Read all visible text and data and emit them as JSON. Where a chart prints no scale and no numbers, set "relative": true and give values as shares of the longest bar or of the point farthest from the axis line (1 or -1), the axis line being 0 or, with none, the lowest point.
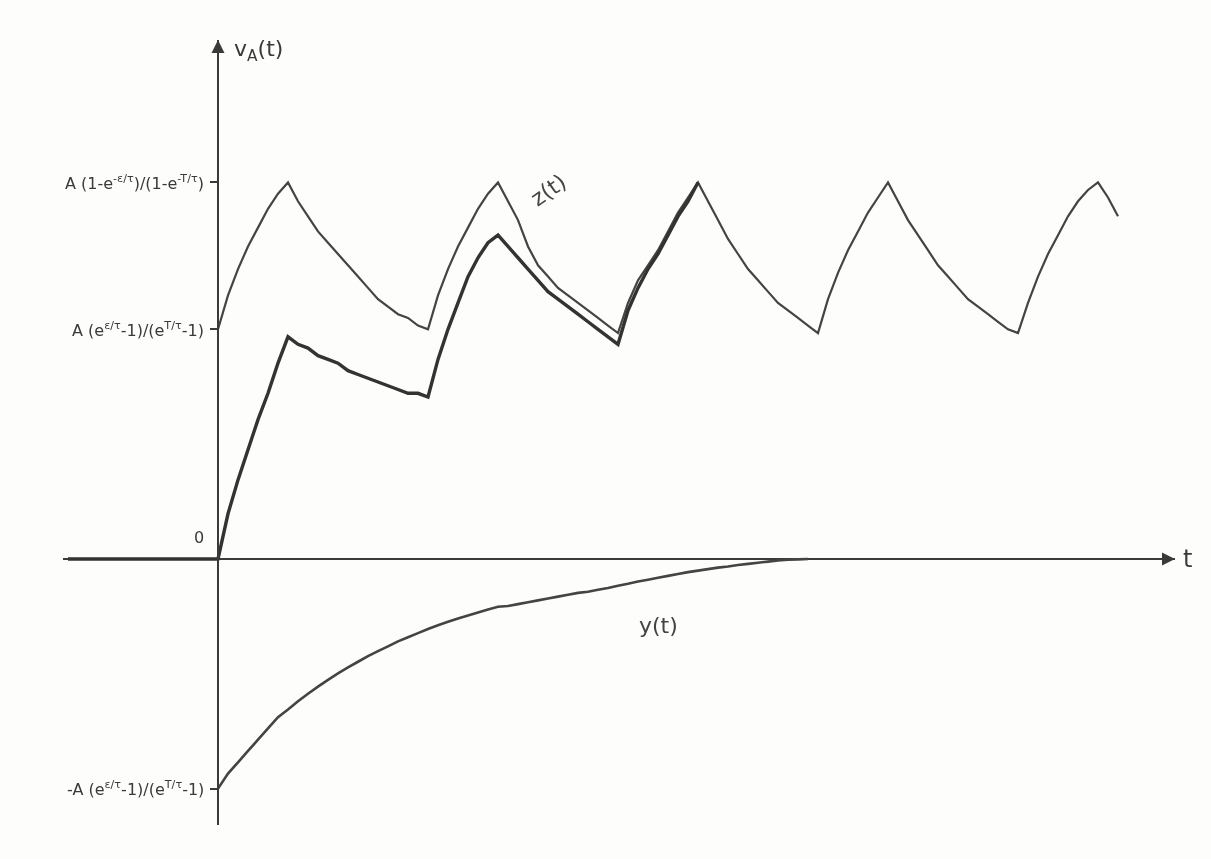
{
  "chart_data": {
    "type": "line",
    "relative": true,
    "xlabel": "t",
    "categories": [
      null,
      null,
      null,
      null,
      null,
      null,
      null,
      null,
      null,
      null,
      null,
      null,
      null,
      null,
      null,
      null,
      null,
      null,
      null,
      null,
      null,
      null,
      null,
      null,
      null,
      null,
      null,
      null,
      null,
      null,
      null,
      null,
      null,
      null,
      null,
      null,
      null,
      null,
      null,
      null,
      null,
      null,
      null,
      null,
      null,
      null,
      null,
      null,
      null,
      null,
      null,
      null,
      null,
      null,
      null,
      null,
      null,
      null,
      null,
      null,
      null,
      null,
      null,
      null,
      null,
      null,
      null,
      null,
      null,
      null,
      null,
      null,
      null,
      null,
      null,
      null,
      null,
      null,
      null,
      null,
      null,
      null,
      null,
      null,
      null,
      null,
      null,
      null,
      null,
      null,
      null,
      null,
      null,
      null,
      null,
      null,
      null,
      null,
      null,
      null,
      null,
      null,
      null,
      null,
      null,
      null
    ],
    "annotations": [
      "A (1-e$^{-ε/τ}$)/(1-e$^{-T/τ}$)",
      "A (e$^{ε/τ}$-1)/(e$^{T/τ}$-1)",
      {
        "text": "0",
        "y": 0
      },
      "-A (e$^{ε/τ}$-1)/(e$^{T/τ}$-1)",
      "v$_{A}$(t)"
    ],
    "series": [
      {
        "name": "z(t)",
        "color": "#444444",
        "values": [
          null,
          null,
          null,
          null,
          null,
          null,
          null,
          null,
          null,
          null,
          null,
          null,
          null,
          null,
          null,
          0.61,
          0.7,
          0.77,
          0.83,
          0.88,
          0.93,
          0.97,
          1.0,
          0.95,
          0.91,
          0.87,
          0.84,
          0.81,
          0.78,
          0.75,
          0.72,
          0.69,
          0.67,
          0.65,
          0.64,
          0.62,
          0.61,
          0.7,
          0.77,
          0.83,
          0.88,
          0.93,
          0.97,
          1.0,
          0.95,
          0.9,
          0.83,
          0.78,
          0.75,
          0.72,
          0.7,
          0.68,
          0.66,
          0.64,
          0.62,
          0.6,
          0.68,
          0.74,
          0.78,
          0.82,
          0.87,
          0.92,
          0.96,
          1.0,
          0.95,
          0.9,
          0.85,
          0.81,
          0.77,
          0.74,
          0.71,
          0.68,
          0.66,
          0.64,
          0.62,
          0.6,
          0.69,
          0.76,
          0.82,
          0.87,
          0.92,
          0.96,
          1.0,
          0.95,
          0.9,
          0.86,
          0.82,
          0.78,
          0.75,
          0.72,
          0.69,
          0.67,
          0.65,
          0.63,
          0.61,
          0.6,
          0.68,
          0.75,
          0.81,
          0.86,
          0.91,
          0.95,
          0.98,
          1.0,
          0.96,
          0.91
        ]
      },
      {
        "color": "#333333",
        "values": [
          0,
          0,
          0,
          0,
          0,
          0,
          0,
          0,
          0,
          0,
          0,
          0,
          0,
          0,
          0,
          0,
          0.12,
          0.21,
          0.29,
          0.37,
          0.44,
          0.52,
          0.59,
          0.57,
          0.56,
          0.54,
          0.53,
          0.52,
          0.5,
          0.49,
          0.48,
          0.47,
          0.46,
          0.45,
          0.44,
          0.44,
          0.43,
          0.53,
          0.61,
          0.68,
          0.75,
          0.8,
          0.84,
          0.86,
          0.83,
          0.8,
          0.77,
          0.74,
          0.71,
          0.69,
          0.67,
          0.65,
          0.63,
          0.61,
          0.59,
          0.57,
          0.66,
          0.72,
          0.77,
          0.81,
          0.86,
          0.91,
          0.95,
          1.0,
          null,
          null,
          null,
          null,
          null,
          null,
          null,
          null,
          null,
          null,
          null,
          null,
          null,
          null,
          null,
          null,
          null,
          null,
          null,
          null,
          null,
          null,
          null,
          null,
          null,
          null,
          null,
          null,
          null,
          null,
          null,
          null,
          null,
          null,
          null,
          null,
          null,
          null,
          null,
          null,
          null,
          null
        ]
      },
      {
        "name": "y(t)",
        "color": "#444444",
        "values": [
          null,
          null,
          null,
          null,
          null,
          null,
          null,
          null,
          null,
          null,
          null,
          null,
          null,
          null,
          null,
          -0.61,
          -0.57,
          -0.54,
          -0.51,
          -0.48,
          -0.45,
          -0.42,
          -0.4,
          -0.378,
          -0.358,
          -0.339,
          -0.321,
          -0.304,
          -0.288,
          -0.273,
          -0.258,
          -0.245,
          -0.232,
          -0.219,
          -0.208,
          -0.197,
          -0.186,
          -0.176,
          -0.167,
          -0.158,
          -0.15,
          -0.142,
          -0.134,
          -0.127,
          -0.125,
          -0.12,
          -0.115,
          -0.11,
          -0.105,
          -0.1,
          -0.095,
          -0.09,
          -0.087,
          -0.082,
          -0.077,
          -0.071,
          -0.066,
          -0.06,
          -0.055,
          -0.05,
          -0.045,
          -0.04,
          -0.035,
          -0.031,
          -0.027,
          -0.023,
          -0.02,
          -0.016,
          -0.013,
          -0.01,
          -0.007,
          -0.004,
          -0.002,
          -0.001,
          0,
          null,
          null,
          null,
          null,
          null,
          null,
          null,
          null,
          null,
          null,
          null,
          null,
          null,
          null,
          null,
          null,
          null,
          null,
          null,
          null,
          null,
          null,
          null,
          null,
          null,
          null,
          null,
          null,
          null,
          null,
          null
        ]
      }
    ]
  }
}
